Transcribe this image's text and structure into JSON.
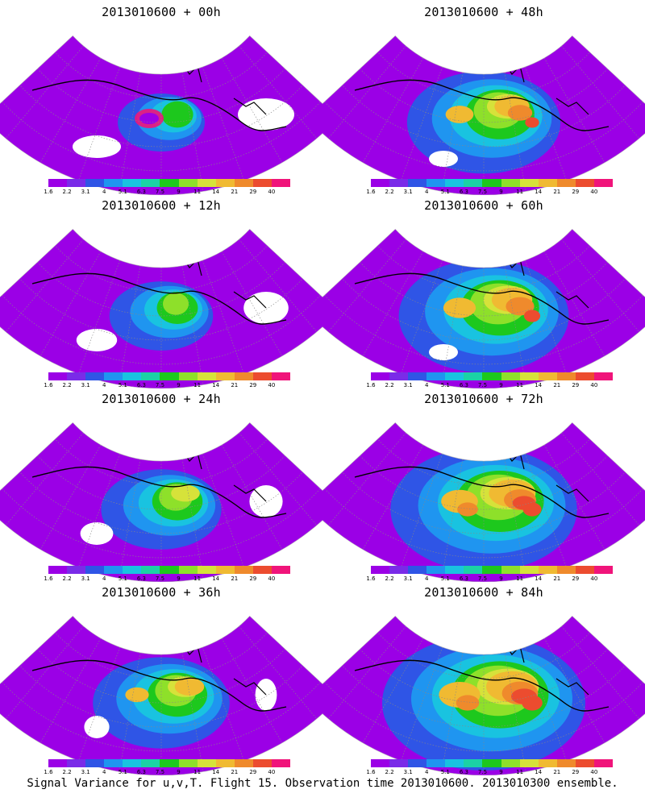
{
  "panels": [
    {
      "title": "2013010600 + 00h",
      "lead_hours": 0
    },
    {
      "title": "2013010600 + 48h",
      "lead_hours": 48
    },
    {
      "title": "2013010600 + 12h",
      "lead_hours": 12
    },
    {
      "title": "2013010600 + 60h",
      "lead_hours": 60
    },
    {
      "title": "2013010600 + 24h",
      "lead_hours": 24
    },
    {
      "title": "2013010600 + 72h",
      "lead_hours": 72
    },
    {
      "title": "2013010600 + 36h",
      "lead_hours": 36
    },
    {
      "title": "2013010600 + 84h",
      "lead_hours": 84
    }
  ],
  "colorbar": {
    "tick_labels": [
      "1.6",
      "2.2",
      "3.1",
      "4",
      "5.1",
      "6.3",
      "7.5",
      "9",
      "11",
      "14",
      "21",
      "29",
      "40"
    ],
    "colors": [
      "#9b00e6",
      "#7a2be8",
      "#2f55e6",
      "#1f95f0",
      "#19c3e0",
      "#1bd2a5",
      "#1dc81d",
      "#8ee02a",
      "#d6e23a",
      "#f0ba32",
      "#ef8a2c",
      "#ec4c2f",
      "#f0147a"
    ]
  },
  "footer": "Signal Variance for u,v,T. Flight 15. Observation time 2013010600. 2013010300 ensemble."
}
